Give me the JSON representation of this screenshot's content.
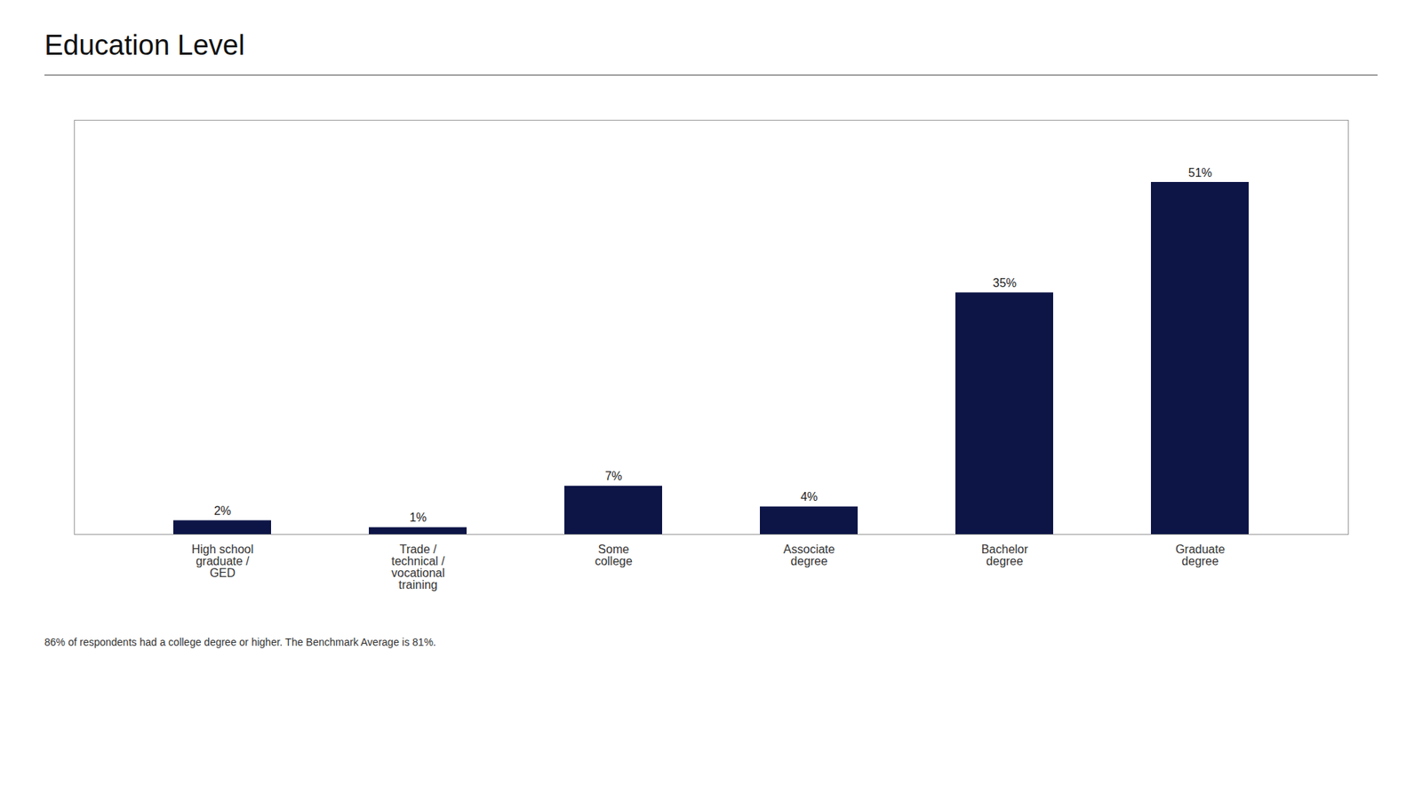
{
  "chart_data": {
    "type": "bar",
    "title": "Education Level",
    "categories": [
      "High school\ngraduate /\nGED",
      "Trade /\ntechnical /\nvocational\ntraining",
      "Some\ncollege",
      "Associate\ndegree",
      "Bachelor\ndegree",
      "Graduate\ndegree"
    ],
    "values": [
      2,
      1,
      7,
      4,
      35,
      51
    ],
    "value_labels": [
      "2%",
      "1%",
      "7%",
      "4%",
      "35%",
      "51%"
    ],
    "data_labels": true,
    "color": "#0d1547",
    "ylim": [
      0,
      60
    ],
    "grid": false,
    "tick_labels": "x",
    "footnote": "86% of respondents had a college degree or higher. The Benchmark Average is 81%."
  }
}
